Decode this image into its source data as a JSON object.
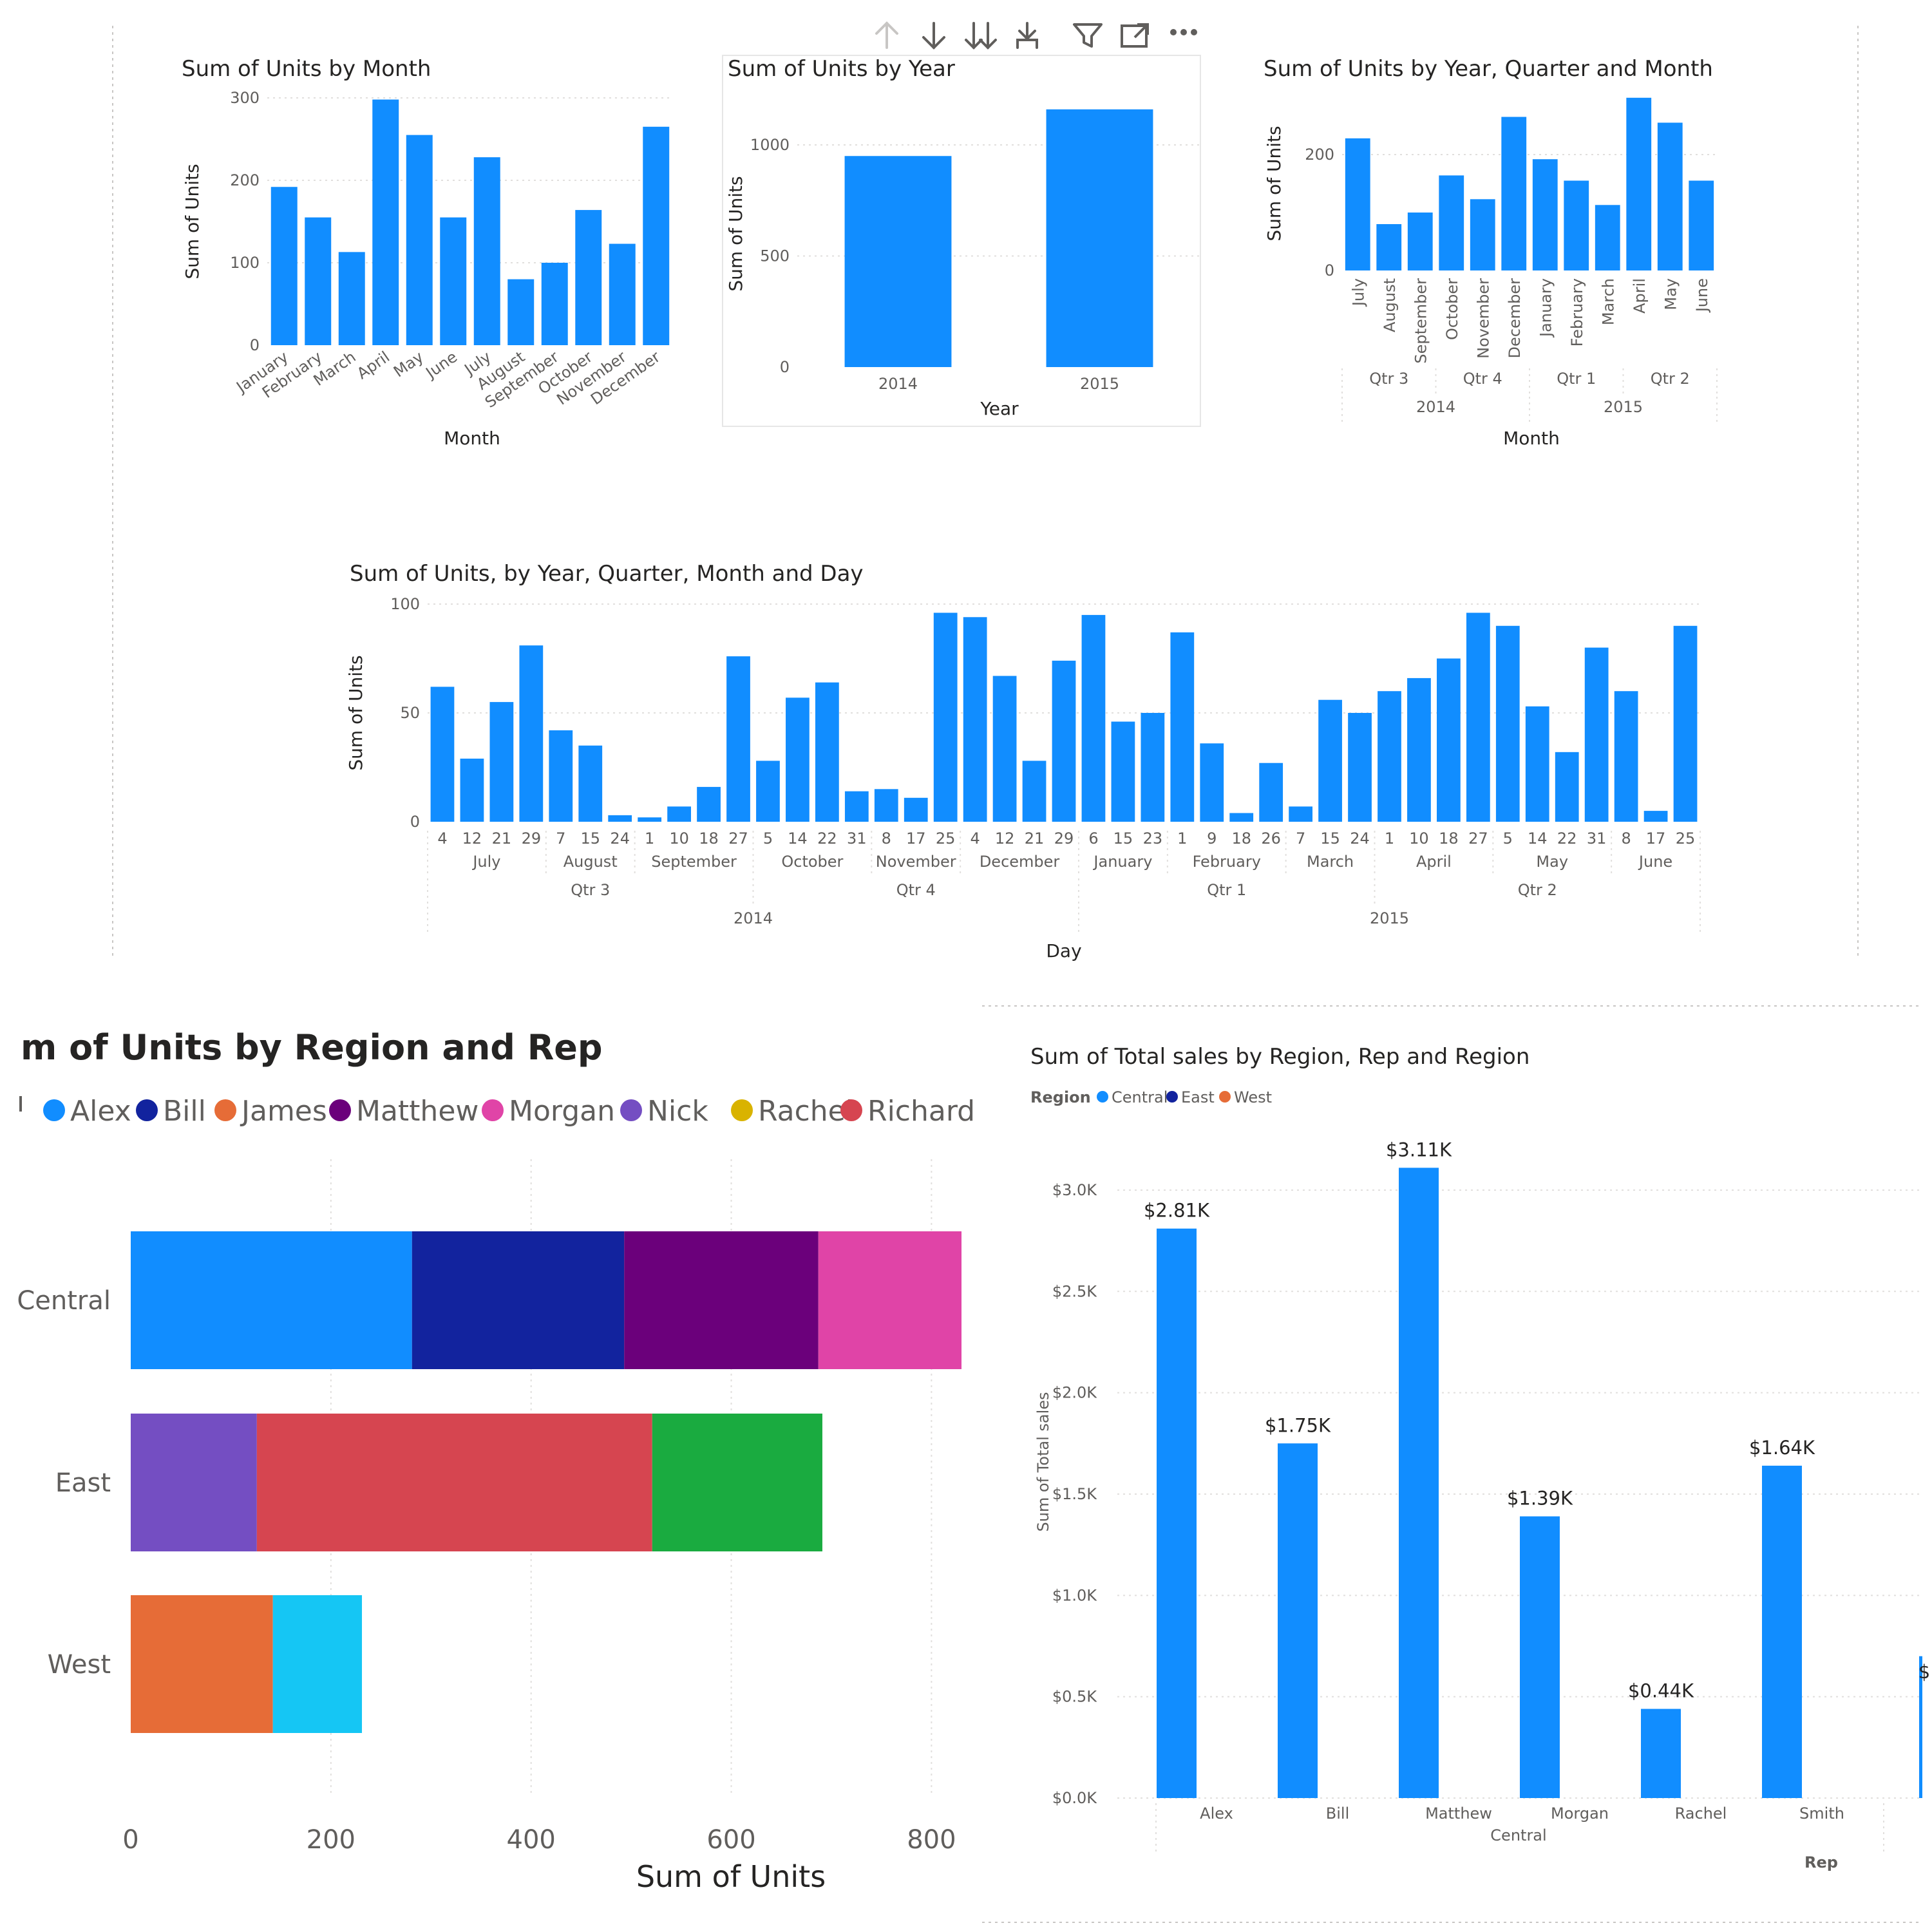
{
  "toolbar": {
    "icons": [
      "drill-up-icon",
      "drill-down-icon",
      "expand-next-level-icon",
      "expand-hierarchy-icon",
      "filter-icon",
      "focus-mode-icon",
      "more-options-icon"
    ]
  },
  "colors": {
    "bar": "#118dff",
    "grid": "#e1dfdd",
    "text": "#252423",
    "muted": "#605e5c"
  },
  "chart_data": [
    {
      "id": "c1",
      "type": "bar",
      "title": "Sum of Units by Month",
      "xlabel": "Month",
      "ylabel": "Sum of Units",
      "ylim": [
        0,
        300
      ],
      "yticks": [
        0,
        100,
        200,
        300
      ],
      "categories": [
        "January",
        "February",
        "March",
        "April",
        "May",
        "June",
        "July",
        "August",
        "September",
        "October",
        "November",
        "December"
      ],
      "values": [
        192,
        155,
        113,
        298,
        255,
        155,
        228,
        80,
        100,
        164,
        123,
        265
      ]
    },
    {
      "id": "c2",
      "type": "bar",
      "title": "Sum of Units by Year",
      "xlabel": "Year",
      "ylabel": "Sum of Units",
      "ylim": [
        0,
        1200
      ],
      "yticks": [
        0,
        500,
        1000
      ],
      "categories": [
        "2014",
        "2015"
      ],
      "values": [
        950,
        1160
      ]
    },
    {
      "id": "c3",
      "type": "bar",
      "title": "Sum of Units by Year, Quarter and Month",
      "xlabel": "Month",
      "ylabel": "Sum of Units",
      "ylim": [
        0,
        300
      ],
      "yticks": [
        0,
        200
      ],
      "categories": [
        "July",
        "August",
        "September",
        "October",
        "November",
        "December",
        "January",
        "February",
        "March",
        "April",
        "May",
        "June"
      ],
      "values": [
        228,
        80,
        100,
        164,
        123,
        265,
        192,
        155,
        113,
        298,
        255,
        155
      ],
      "quarters": [
        {
          "label": "Qtr 3",
          "count": 3
        },
        {
          "label": "Qtr 4",
          "count": 3
        },
        {
          "label": "Qtr 1",
          "count": 3
        },
        {
          "label": "Qtr 2",
          "count": 3
        }
      ],
      "years": [
        {
          "label": "2014",
          "count": 6
        },
        {
          "label": "2015",
          "count": 6
        }
      ]
    },
    {
      "id": "c4",
      "type": "bar",
      "title": "Sum of Units, by Year, Quarter, Month and Day",
      "xlabel": "Day",
      "ylabel": "Sum of Units",
      "ylim": [
        0,
        100
      ],
      "yticks": [
        0,
        50,
        100
      ],
      "categories": [
        "4",
        "12",
        "21",
        "29",
        "7",
        "15",
        "24",
        "1",
        "10",
        "18",
        "27",
        "5",
        "14",
        "22",
        "31",
        "8",
        "17",
        "25",
        "4",
        "12",
        "21",
        "29",
        "6",
        "15",
        "23",
        "1",
        "9",
        "18",
        "26",
        "7",
        "15",
        "24",
        "1",
        "10",
        "18",
        "27",
        "5",
        "14",
        "22",
        "31",
        "8",
        "17",
        "25"
      ],
      "values": [
        62,
        29,
        55,
        81,
        42,
        35,
        3,
        2,
        7,
        16,
        76,
        28,
        57,
        64,
        14,
        15,
        11,
        96,
        94,
        67,
        28,
        74,
        95,
        46,
        50,
        87,
        36,
        4,
        27,
        7,
        56,
        50,
        60,
        66,
        75,
        96,
        90,
        53,
        32,
        80,
        60,
        5,
        90
      ],
      "months": [
        {
          "label": "July",
          "count": 4
        },
        {
          "label": "August",
          "count": 3
        },
        {
          "label": "September",
          "count": 4
        },
        {
          "label": "October",
          "count": 4
        },
        {
          "label": "November",
          "count": 3
        },
        {
          "label": "December",
          "count": 4
        },
        {
          "label": "January",
          "count": 3
        },
        {
          "label": "February",
          "count": 4
        },
        {
          "label": "March",
          "count": 3
        },
        {
          "label": "April",
          "count": 4
        },
        {
          "label": "May",
          "count": 4
        },
        {
          "label": "June",
          "count": 3
        }
      ],
      "quarters": [
        {
          "label": "Qtr 3",
          "count": 11
        },
        {
          "label": "Qtr 4",
          "count": 11
        },
        {
          "label": "Qtr 1",
          "count": 10
        },
        {
          "label": "Qtr 2",
          "count": 11
        }
      ],
      "years": [
        {
          "label": "2014",
          "count": 22
        },
        {
          "label": "2015",
          "count": 21
        }
      ]
    },
    {
      "id": "c5",
      "type": "bar",
      "orientation": "horizontal",
      "stacked": true,
      "title": "m of Units by Region and Rep",
      "xlabel": "Sum of Units",
      "ylabel": "",
      "xlim": [
        0,
        830
      ],
      "xticks": [
        0,
        200,
        400,
        600,
        800
      ],
      "legend": [
        {
          "name": "Alex",
          "color": "#118dff"
        },
        {
          "name": "Bill",
          "color": "#12239e"
        },
        {
          "name": "James",
          "color": "#e66c37"
        },
        {
          "name": "Matthew",
          "color": "#6b007b"
        },
        {
          "name": "Morgan",
          "color": "#e044a7"
        },
        {
          "name": "Nick",
          "color": "#744ec2"
        },
        {
          "name": "Rachel",
          "color": "#d9b300"
        },
        {
          "name": "Richard",
          "color": "#d64550"
        }
      ],
      "categories": [
        "Central",
        "East",
        "West"
      ],
      "segments": [
        [
          {
            "name": "Alex",
            "value": 281,
            "color": "#118dff"
          },
          {
            "name": "Bill",
            "value": 212,
            "color": "#12239e"
          },
          {
            "name": "Matthew",
            "value": 194,
            "color": "#6b007b"
          },
          {
            "name": "Morgan",
            "value": 143,
            "color": "#e044a7"
          }
        ],
        [
          {
            "name": "Nick",
            "value": 126,
            "color": "#744ec2"
          },
          {
            "name": "Richard",
            "value": 395,
            "color": "#d64550"
          },
          {
            "name": "",
            "value": 170,
            "color": "#1aab40"
          }
        ],
        [
          {
            "name": "James",
            "value": 142,
            "color": "#e66c37"
          },
          {
            "name": "",
            "value": 89,
            "color": "#15c6f4"
          }
        ]
      ]
    },
    {
      "id": "c6",
      "type": "bar",
      "title": "Sum of Total sales by Region, Rep and Region",
      "xlabel": "Rep",
      "ylabel": "Sum of Total sales",
      "ylim": [
        0,
        3200
      ],
      "yticks": [
        0,
        500,
        1000,
        1500,
        2000,
        2500,
        3000
      ],
      "yticklabels": [
        "$0.0K",
        "$0.5K",
        "$1.0K",
        "$1.5K",
        "$2.0K",
        "$2.5K",
        "$3.0K"
      ],
      "legend_title": "Region",
      "legend": [
        {
          "name": "Central",
          "color": "#118dff"
        },
        {
          "name": "East",
          "color": "#12239e"
        },
        {
          "name": "West",
          "color": "#e66c37"
        }
      ],
      "categories": [
        "Alex",
        "Bill",
        "Matthew",
        "Morgan",
        "Rachel",
        "Smith"
      ],
      "values": [
        2810,
        1750,
        3110,
        1390,
        440,
        1640
      ],
      "data_labels": [
        "$2.81K",
        "$1.75K",
        "$3.11K",
        "$1.39K",
        "$0.44K",
        "$1.64K"
      ],
      "group_label": "Central",
      "clipped_label": "$"
    }
  ]
}
